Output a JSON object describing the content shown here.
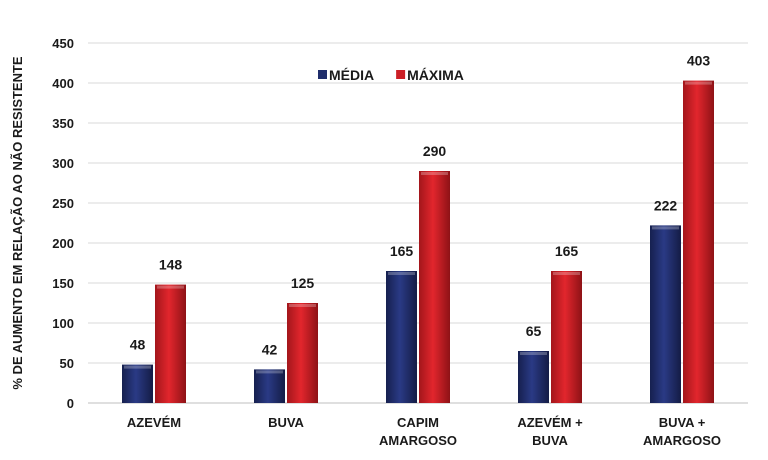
{
  "chart_data": {
    "type": "bar",
    "title": "",
    "xlabel": "",
    "ylabel": "% DE AUMENTO EM RELAÇÃO AO NÃO RESISTENTE",
    "ylim": [
      0,
      450
    ],
    "yticks": [
      0,
      50,
      100,
      150,
      200,
      250,
      300,
      350,
      400,
      450
    ],
    "grid": true,
    "legend_position": "top-center",
    "categories": [
      [
        "AZEVÉM"
      ],
      [
        "BUVA"
      ],
      [
        "CAPIM",
        "AMARGOSO"
      ],
      [
        "AZEVÉM +",
        "BUVA"
      ],
      [
        "BUVA +",
        "AMARGOSO"
      ]
    ],
    "series": [
      {
        "name": "MÉDIA",
        "color": "#1f2d6b",
        "values": [
          48,
          42,
          165,
          65,
          222
        ]
      },
      {
        "name": "MÁXIMA",
        "color": "#cc1f26",
        "values": [
          148,
          125,
          290,
          165,
          403
        ]
      }
    ]
  }
}
